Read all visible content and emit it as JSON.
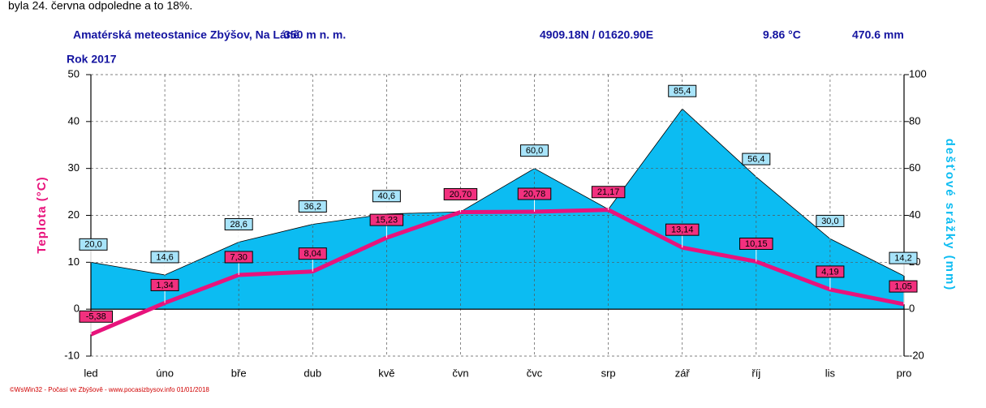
{
  "caption": "byla 24. června odpoledne a to 18%.",
  "chart_data": {
    "type": "line-area",
    "header": [
      "Amatérská meteostanice Zbýšov, Na Láně",
      "350 m n. m.",
      "4909.18N / 01620.90E",
      "9.86 °C",
      "470.6 mm"
    ],
    "subtitle": "Rok 2017",
    "ylabel": "Teplota (°C)",
    "y2label": "dešťové srážky (mm)",
    "footer": "©WsWin32 - Počasí ve Zbýšově - www.pocasizbysov.info 01/01/2018",
    "categories": [
      "led",
      "úno",
      "bře",
      "dub",
      "kvě",
      "čvn",
      "čvc",
      "srp",
      "zář",
      "říj",
      "lis",
      "pro"
    ],
    "series": [
      {
        "name": "srážky",
        "axis": "y2",
        "kind": "area",
        "color": "#0cbcf2",
        "values": [
          20.0,
          14.6,
          28.6,
          36.2,
          40.6,
          41.5,
          60.0,
          42.6,
          85.4,
          56.4,
          30.0,
          14.2
        ],
        "value_labels": [
          "20,0",
          "14,6",
          "28,6",
          "36,2",
          "40,6",
          null,
          "60,0",
          null,
          "85,4",
          "56,4",
          "30,0",
          "14,2"
        ]
      },
      {
        "name": "teplota",
        "kind": "line",
        "color": "#e8137c",
        "values": [
          -5.38,
          1.34,
          7.3,
          8.04,
          15.23,
          20.7,
          20.78,
          21.17,
          13.14,
          10.15,
          4.19,
          1.05
        ],
        "value_labels": [
          "-5,38",
          "1,34",
          "7,30",
          "8,04",
          "15,23",
          "20,70",
          "20,78",
          "21,17",
          "13,14",
          "10,15",
          "4,19",
          "1,05"
        ]
      }
    ],
    "ylim": [
      -10,
      50
    ],
    "yticks": [
      -10,
      0,
      10,
      20,
      30,
      40,
      50
    ],
    "y2lim": [
      -20,
      100
    ],
    "y2ticks": [
      -20,
      0,
      20,
      40,
      60,
      80,
      100
    ],
    "grid": true
  }
}
